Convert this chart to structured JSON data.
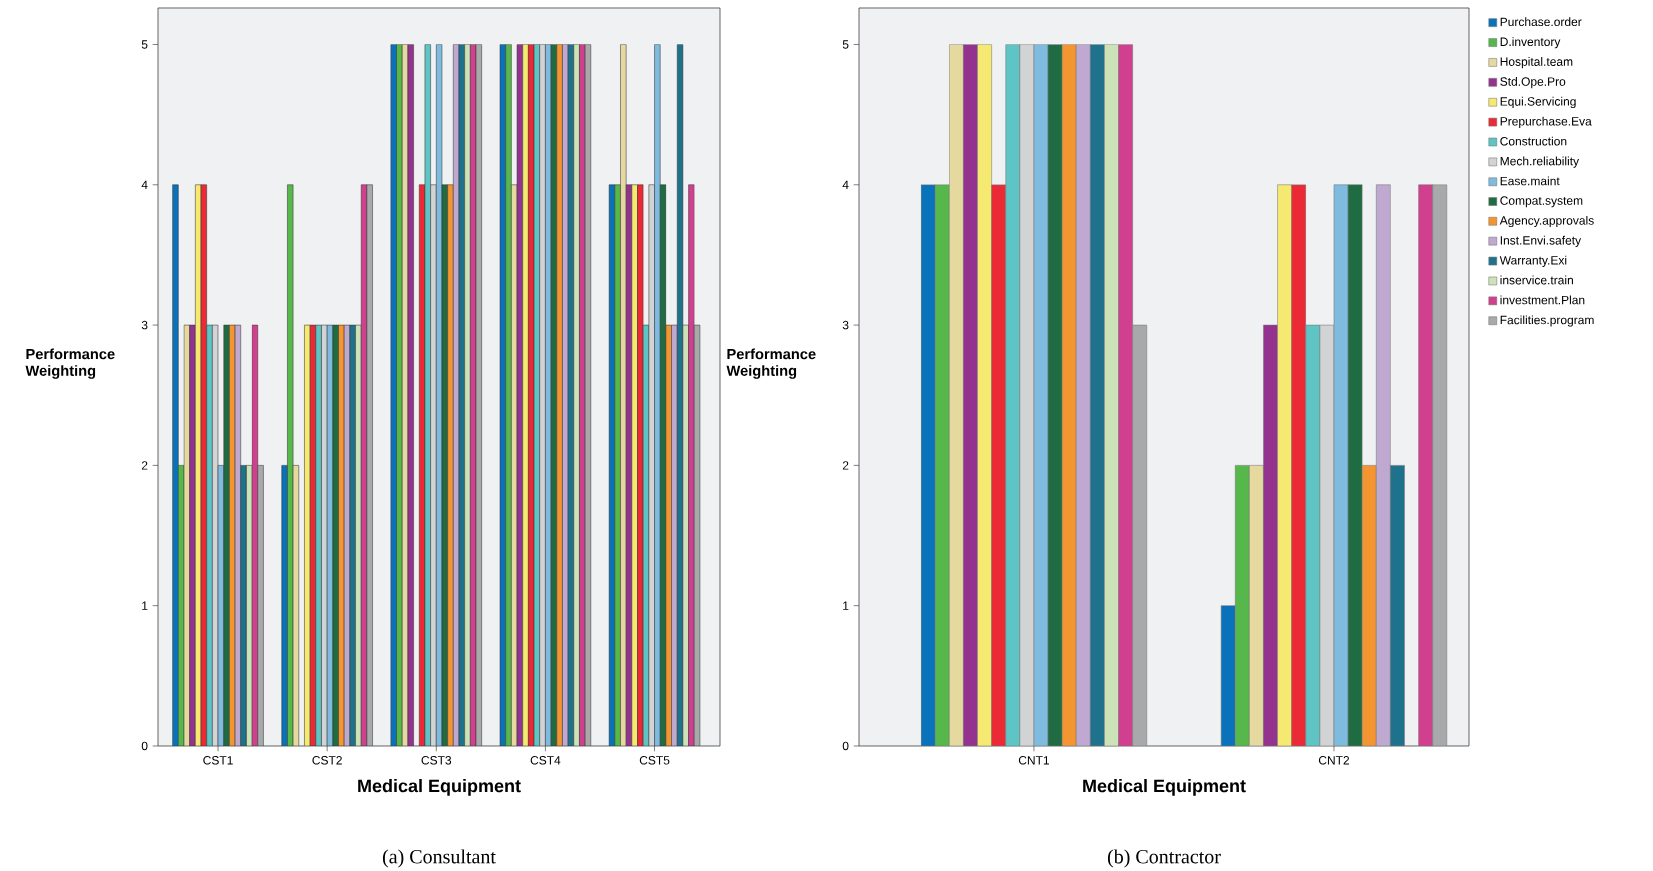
{
  "chart_data": [
    {
      "type": "bar",
      "title": "(a) Consultant",
      "xlabel": "Medical Equipment",
      "ylabel": "Performance Weighting",
      "categories": [
        "CST1",
        "CST2",
        "CST3",
        "CST4",
        "CST5"
      ],
      "ylim": [
        0,
        5.26
      ],
      "yticks": [
        0,
        1,
        2,
        3,
        4,
        5
      ],
      "series": [
        {
          "color": "#0a72ba",
          "values": [
            4,
            2,
            5,
            5,
            4
          ]
        },
        {
          "color": "#56b84a",
          "values": [
            2,
            4,
            5,
            5,
            4
          ]
        },
        {
          "color": "#e5d9a0",
          "values": [
            3,
            2,
            5,
            4,
            5
          ]
        },
        {
          "color": "#943290",
          "values": [
            3,
            null,
            5,
            5,
            4
          ]
        },
        {
          "color": "#f6e971",
          "values": [
            4,
            3,
            null,
            5,
            4
          ]
        },
        {
          "color": "#ec2a35",
          "values": [
            4,
            3,
            4,
            5,
            4
          ]
        },
        {
          "color": "#5ec4c4",
          "values": [
            3,
            3,
            5,
            5,
            3
          ]
        },
        {
          "color": "#d1d3d4",
          "values": [
            3,
            3,
            4,
            5,
            4
          ]
        },
        {
          "color": "#7fbadf",
          "values": [
            2,
            3,
            5,
            5,
            5
          ]
        },
        {
          "color": "#1f6b42",
          "values": [
            3,
            3,
            4,
            5,
            4
          ]
        },
        {
          "color": "#f39530",
          "values": [
            3,
            3,
            4,
            5,
            3
          ]
        },
        {
          "color": "#bfa9d0",
          "values": [
            3,
            3,
            5,
            5,
            3
          ]
        },
        {
          "color": "#1f728c",
          "values": [
            2,
            3,
            5,
            5,
            5
          ]
        },
        {
          "color": "#cce3b7",
          "values": [
            2,
            3,
            5,
            5,
            3
          ]
        },
        {
          "color": "#d0408f",
          "values": [
            3,
            4,
            5,
            5,
            4
          ]
        },
        {
          "color": "#a8a9ab",
          "values": [
            2,
            4,
            5,
            5,
            3
          ]
        }
      ]
    },
    {
      "type": "bar",
      "title": "(b) Contractor",
      "xlabel": "Medical Equipment",
      "ylabel": "Performance Weighting",
      "categories": [
        "CNT1",
        "CNT2"
      ],
      "ylim": [
        0,
        5.26
      ],
      "yticks": [
        0,
        1,
        2,
        3,
        4,
        5
      ],
      "legend": "right",
      "series": [
        {
          "name": "Purchase.order",
          "color": "#0a72ba",
          "values": [
            4,
            1
          ]
        },
        {
          "name": "D.inventory",
          "color": "#56b84a",
          "values": [
            4,
            2
          ]
        },
        {
          "name": "Hospital.team",
          "color": "#e5d9a0",
          "values": [
            5,
            2
          ]
        },
        {
          "name": "Std.Ope.Pro",
          "color": "#943290",
          "values": [
            5,
            3
          ]
        },
        {
          "name": "Equi.Servicing",
          "color": "#f6e971",
          "values": [
            5,
            4
          ]
        },
        {
          "name": "Prepurchase.Eva",
          "color": "#ec2a35",
          "values": [
            4,
            4
          ]
        },
        {
          "name": "Construction",
          "color": "#5ec4c4",
          "values": [
            5,
            3
          ]
        },
        {
          "name": "Mech.reliability",
          "color": "#d1d3d4",
          "values": [
            5,
            3
          ]
        },
        {
          "name": "Ease.maint",
          "color": "#7fbadf",
          "values": [
            5,
            4
          ]
        },
        {
          "name": "Compat.system",
          "color": "#1f6b42",
          "values": [
            5,
            4
          ]
        },
        {
          "name": "Agency.approvals",
          "color": "#f39530",
          "values": [
            5,
            2
          ]
        },
        {
          "name": "Inst.Envi.safety",
          "color": "#bfa9d0",
          "values": [
            5,
            4
          ]
        },
        {
          "name": "Warranty.Exi",
          "color": "#1f728c",
          "values": [
            5,
            2
          ]
        },
        {
          "name": "inservice.train",
          "color": "#cce3b7",
          "values": [
            5,
            null
          ]
        },
        {
          "name": "investment.Plan",
          "color": "#d0408f",
          "values": [
            5,
            4
          ]
        },
        {
          "name": "Facilities.program",
          "color": "#a8a9ab",
          "values": [
            3,
            4
          ]
        }
      ]
    }
  ]
}
